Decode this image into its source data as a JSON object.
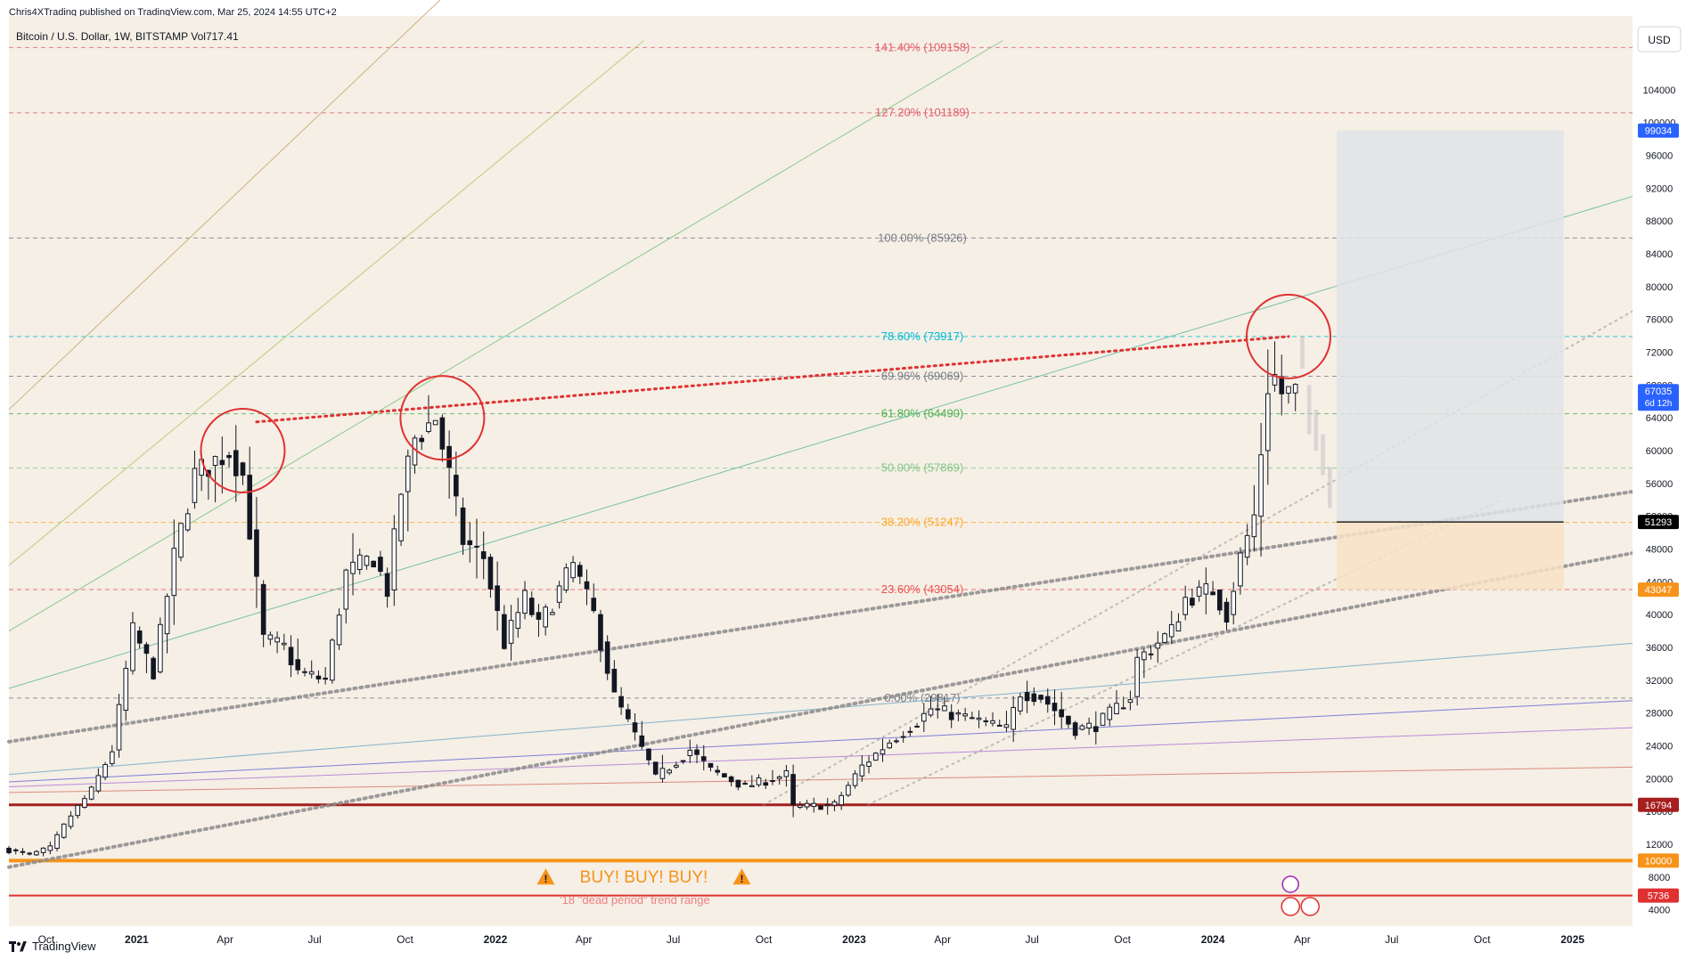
{
  "header": {
    "published_caption": "Chris4XTrading published on TradingView.com, Mar 25, 2024 14:55 UTC+2",
    "symbol_line": "Bitcoin / U.S. Dollar, 1W, BITSTAMP  Vol717.41",
    "currency_button": "USD"
  },
  "footer": {
    "brand": "TradingView"
  },
  "colors": {
    "background": "#f5efe6",
    "candle": "#131722",
    "red_circle": "#e03131",
    "red_dotted": "#e03131",
    "grey_dotted": "#8c8c8c",
    "orange_support": "#f7931a",
    "darkred_support": "#a61e1e",
    "red_support": "#e03131",
    "blue_price_tag": "#2962ff",
    "target_box": "#dfe3e6",
    "stop_box": "#f7e2c5"
  },
  "chart_data": {
    "type": "candlestick",
    "symbol": "Bitcoin / U.S. Dollar",
    "timeframe": "1W",
    "exchange": "BITSTAMP",
    "y_scale": "linear",
    "ylim": [
      2000,
      113000
    ],
    "xlim": [
      "2020-08-24",
      "2025-03-03"
    ],
    "y_ticks": [
      4000,
      8000,
      12000,
      16000,
      20000,
      24000,
      28000,
      32000,
      36000,
      40000,
      44000,
      48000,
      52000,
      56000,
      60000,
      64000,
      68000,
      72000,
      76000,
      80000,
      84000,
      88000,
      92000,
      96000,
      100000,
      104000
    ],
    "x_ticks": [
      {
        "label": "Oct",
        "date": "2020-10-01"
      },
      {
        "label": "2021",
        "date": "2021-01-01"
      },
      {
        "label": "Apr",
        "date": "2021-04-01"
      },
      {
        "label": "Jul",
        "date": "2021-07-01"
      },
      {
        "label": "Oct",
        "date": "2021-10-01"
      },
      {
        "label": "2022",
        "date": "2022-01-01"
      },
      {
        "label": "Apr",
        "date": "2022-04-01"
      },
      {
        "label": "Jul",
        "date": "2022-07-01"
      },
      {
        "label": "Oct",
        "date": "2022-10-01"
      },
      {
        "label": "2023",
        "date": "2023-01-01"
      },
      {
        "label": "Apr",
        "date": "2023-04-01"
      },
      {
        "label": "Jul",
        "date": "2023-07-01"
      },
      {
        "label": "Oct",
        "date": "2023-10-01"
      },
      {
        "label": "2024",
        "date": "2024-01-01"
      },
      {
        "label": "Apr",
        "date": "2024-04-01"
      },
      {
        "label": "Jul",
        "date": "2024-07-01"
      },
      {
        "label": "Oct",
        "date": "2024-10-01"
      },
      {
        "label": "2025",
        "date": "2025-01-01"
      }
    ],
    "price_path": [
      [
        "2020-08-24",
        11500
      ],
      [
        "2020-09-21",
        10700
      ],
      [
        "2020-10-12",
        11500
      ],
      [
        "2020-11-02",
        15500
      ],
      [
        "2020-11-23",
        18500
      ],
      [
        "2020-12-14",
        23500
      ],
      [
        "2021-01-04",
        38000
      ],
      [
        "2021-01-25",
        33000
      ],
      [
        "2021-02-15",
        47000
      ],
      [
        "2021-03-08",
        57000
      ],
      [
        "2021-04-12",
        60000
      ],
      [
        "2021-04-26",
        57000
      ],
      [
        "2021-05-17",
        37000
      ],
      [
        "2021-06-07",
        36000
      ],
      [
        "2021-06-21",
        33000
      ],
      [
        "2021-07-19",
        32000
      ],
      [
        "2021-08-09",
        45000
      ],
      [
        "2021-09-06",
        47000
      ],
      [
        "2021-09-20",
        43000
      ],
      [
        "2021-10-04",
        55000
      ],
      [
        "2021-10-18",
        61500
      ],
      [
        "2021-11-08",
        64000
      ],
      [
        "2021-11-22",
        57000
      ],
      [
        "2021-12-06",
        49000
      ],
      [
        "2021-12-27",
        47000
      ],
      [
        "2022-01-17",
        36500
      ],
      [
        "2022-02-07",
        42000
      ],
      [
        "2022-02-21",
        38500
      ],
      [
        "2022-03-28",
        46000
      ],
      [
        "2022-04-18",
        40000
      ],
      [
        "2022-05-09",
        30000
      ],
      [
        "2022-06-13",
        22000
      ],
      [
        "2022-06-20",
        20000
      ],
      [
        "2022-07-25",
        23500
      ],
      [
        "2022-08-15",
        21000
      ],
      [
        "2022-09-19",
        19000
      ],
      [
        "2022-10-31",
        20500
      ],
      [
        "2022-11-07",
        16500
      ],
      [
        "2022-12-19",
        16800
      ],
      [
        "2023-01-16",
        21500
      ],
      [
        "2023-02-13",
        24500
      ],
      [
        "2023-03-13",
        27000
      ],
      [
        "2023-03-27",
        28500
      ],
      [
        "2023-05-15",
        27000
      ],
      [
        "2023-06-12",
        26000
      ],
      [
        "2023-06-26",
        30500
      ],
      [
        "2023-07-17",
        30000
      ],
      [
        "2023-08-21",
        26000
      ],
      [
        "2023-09-11",
        26500
      ],
      [
        "2023-10-16",
        30000
      ],
      [
        "2023-10-23",
        34500
      ],
      [
        "2023-11-27",
        38000
      ],
      [
        "2023-12-11",
        42000
      ],
      [
        "2024-01-08",
        43000
      ],
      [
        "2024-01-22",
        40000
      ],
      [
        "2024-02-05",
        47000
      ],
      [
        "2024-02-19",
        52000
      ],
      [
        "2024-03-04",
        68000
      ],
      [
        "2024-03-11",
        69000
      ],
      [
        "2024-03-18",
        67000
      ],
      [
        "2024-03-25",
        67035
      ]
    ],
    "fib_levels": [
      {
        "label": "141.40% (109158)",
        "value": 109158,
        "color": "#e35d6a"
      },
      {
        "label": "127.20% (101189)",
        "value": 101189,
        "color": "#e35d6a"
      },
      {
        "label": "100.00% (85926)",
        "value": 85926,
        "color": "#787b86"
      },
      {
        "label": "78.60% (73917)",
        "value": 73917,
        "color": "#00bcd4"
      },
      {
        "label": "69.96% (69069)",
        "value": 69069,
        "color": "#787b86"
      },
      {
        "label": "61.80% (64490)",
        "value": 64490,
        "color": "#4caf50"
      },
      {
        "label": "50.00% (57869)",
        "value": 57869,
        "color": "#81c784"
      },
      {
        "label": "38.20% (51247)",
        "value": 51247,
        "color": "#ffa726"
      },
      {
        "label": "23.60% (43054)",
        "value": 43054,
        "color": "#ef5350"
      },
      {
        "label": "0.00% (29817)",
        "value": 29817,
        "color": "#787b86"
      }
    ],
    "price_tags": [
      {
        "text": "99034",
        "value": 99034,
        "bg": "#2962ff",
        "fg": "#ffffff"
      },
      {
        "text": "67035",
        "sub": "6d 12h",
        "value": 67035,
        "bg": "#2962ff",
        "fg": "#ffffff"
      },
      {
        "text": "51293",
        "value": 51293,
        "bg": "#000000",
        "fg": "#ffffff"
      },
      {
        "text": "43047",
        "value": 43047,
        "bg": "#f7931a",
        "fg": "#ffffff"
      },
      {
        "text": "16794",
        "value": 16794,
        "bg": "#a61e1e",
        "fg": "#ffffff"
      },
      {
        "text": "10000",
        "value": 10000,
        "bg": "#f7931a",
        "fg": "#ffffff"
      },
      {
        "text": "5736",
        "value": 5736,
        "bg": "#e03131",
        "fg": "#ffffff"
      }
    ],
    "support_lines": [
      {
        "value": 16794,
        "color": "#a61e1e",
        "width": 3
      },
      {
        "value": 10000,
        "color": "#f7931a",
        "width": 4
      },
      {
        "value": 5736,
        "color": "#e03131",
        "width": 2
      }
    ],
    "annotations": {
      "buy_text": "BUY! BUY! BUY!",
      "warning_icon": "warning-icon",
      "dead_period_text": "'18 \"dead period\" trend range",
      "circles": [
        "2021-04-19",
        "2021-11-08",
        "2024-03-18"
      ]
    },
    "position_box": {
      "start": "2024-05-06",
      "end": "2024-12-23",
      "entry": 51293,
      "target": 99034,
      "stop": 43047
    }
  }
}
